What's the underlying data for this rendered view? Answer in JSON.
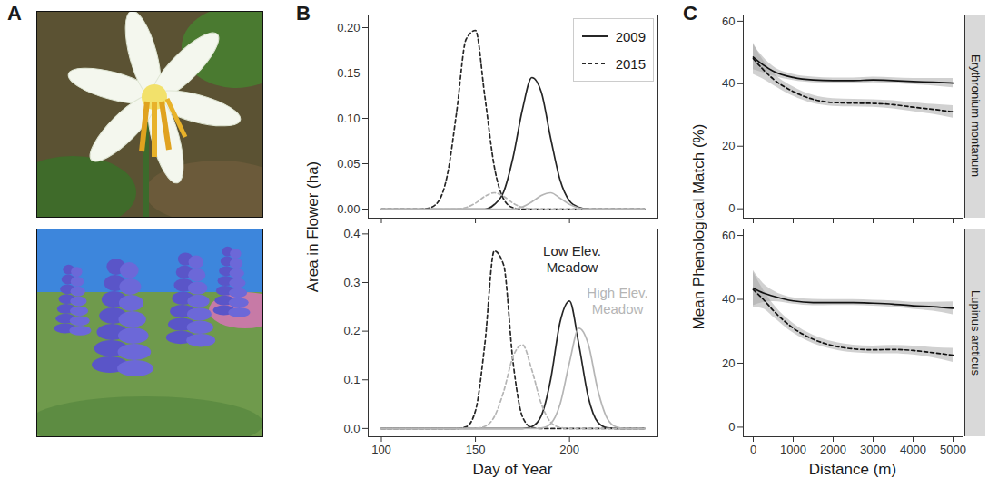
{
  "chart_data": [
    {
      "panel": "A",
      "type": "image"
    },
    {
      "panel": "B",
      "type": "line",
      "ylabel": "Area in Flower (ha)",
      "legend": "top-right",
      "tick_labels": "y",
      "xlim": [
        93,
        247
      ],
      "xticks": [
        100,
        150,
        200
      ],
      "ylim": [
        -0.01,
        0.214
      ],
      "yticks": [
        {
          "value": 0,
          "label": "0.00"
        },
        0.05,
        {
          "value": 0.1,
          "label": "0.10"
        },
        0.15,
        {
          "value": 0.2,
          "label": "0.20"
        }
      ],
      "x": [
        100,
        105,
        110,
        115,
        120,
        125,
        130,
        135,
        140,
        145,
        150,
        155,
        160,
        165,
        170,
        175,
        180,
        185,
        190,
        195,
        200,
        205,
        210,
        215,
        220,
        225,
        230,
        235,
        240
      ],
      "series": [
        {
          "name": "2009",
          "group": "Low Elev. Meadow",
          "color": "#262626",
          "line_style": "solid",
          "values": [
            0,
            0,
            0,
            0,
            0,
            0,
            0,
            0,
            0,
            0,
            0,
            0,
            0.005,
            0.019,
            0.057,
            0.11,
            0.145,
            0.129,
            0.078,
            0.032,
            0.009,
            0.002,
            0,
            0,
            0,
            0,
            0,
            0,
            0
          ]
        },
        {
          "name": "2015",
          "group": "Low Elev. Meadow",
          "color": "#262626",
          "line_style": "dashed",
          "values": [
            0,
            0,
            0,
            0,
            0,
            0.001,
            0.0075,
            0.037,
            0.107,
            0.187,
            0.197,
            0.124,
            0.047,
            0.011,
            0.0015,
            0,
            0,
            0,
            0,
            0,
            0,
            0,
            0,
            0,
            0,
            0,
            0,
            0,
            0
          ]
        },
        {
          "name": "2009",
          "group": "High Elev. Meadow",
          "color": "#b5b5b5",
          "line_style": "solid",
          "values": [
            0,
            0,
            0,
            0,
            0,
            0,
            0,
            0,
            0,
            0,
            0,
            0,
            0,
            0,
            0,
            0.0024,
            0.008,
            0.015,
            0.018,
            0.012,
            0.0053,
            0.0013,
            0,
            0,
            0,
            0,
            0,
            0,
            0
          ]
        },
        {
          "name": "2015",
          "group": "High Elev. Meadow",
          "color": "#b5b5b5",
          "line_style": "dashed",
          "values": [
            0,
            0,
            0,
            0,
            0,
            0,
            0,
            0,
            0.0003,
            0.0018,
            0.0065,
            0.014,
            0.018,
            0.014,
            0.0065,
            0.0018,
            0.0003,
            0,
            0,
            0,
            0,
            0,
            0,
            0,
            0,
            0,
            0,
            0,
            0
          ]
        }
      ]
    },
    {
      "type": "line",
      "xlabel": "Day of Year",
      "annotations": [
        "Low Elev. Meadow",
        "High Elev. Meadow"
      ],
      "xlim": [
        93,
        247
      ],
      "xticks": [
        100,
        150,
        200
      ],
      "ylim": [
        -0.017,
        0.41
      ],
      "yticks": [
        {
          "value": 0,
          "label": "0.0"
        },
        0.1,
        0.2,
        0.3,
        0.4
      ],
      "x": [
        100,
        105,
        110,
        115,
        120,
        125,
        130,
        135,
        140,
        145,
        150,
        155,
        160,
        165,
        170,
        175,
        180,
        185,
        190,
        195,
        200,
        205,
        210,
        215,
        220,
        225,
        230,
        235,
        240
      ],
      "series": [
        {
          "name": "2009",
          "group": "Low Elev. Meadow",
          "color": "#262626",
          "line_style": "solid",
          "values": [
            0,
            0,
            0,
            0,
            0,
            0,
            0,
            0,
            0,
            0,
            0,
            0,
            0,
            0,
            0,
            0,
            0.004,
            0.026,
            0.101,
            0.219,
            0.262,
            0.172,
            0.064,
            0.013,
            0.0015,
            0,
            0,
            0,
            0
          ]
        },
        {
          "name": "2015",
          "group": "Low Elev. Meadow",
          "color": "#262626",
          "line_style": "dashed",
          "values": [
            0,
            0,
            0,
            0,
            0,
            0,
            0,
            0,
            0,
            0.0033,
            0.036,
            0.174,
            0.365,
            0.336,
            0.136,
            0.024,
            0.0019,
            0,
            0,
            0,
            0,
            0,
            0,
            0,
            0,
            0,
            0,
            0,
            0
          ]
        },
        {
          "name": "2009",
          "group": "High Elev. Meadow",
          "color": "#b5b5b5",
          "line_style": "solid",
          "values": [
            0,
            0,
            0,
            0,
            0,
            0,
            0,
            0,
            0,
            0,
            0,
            0,
            0,
            0,
            0,
            0,
            0,
            0.001,
            0.01,
            0.05,
            0.136,
            0.206,
            0.173,
            0.08,
            0.021,
            0.003,
            0,
            0,
            0
          ]
        },
        {
          "name": "2015",
          "group": "High Elev. Meadow",
          "color": "#b5b5b5",
          "line_style": "dashed",
          "values": [
            0,
            0,
            0,
            0,
            0,
            0,
            0,
            0,
            0,
            0,
            0.0005,
            0.0044,
            0.024,
            0.076,
            0.148,
            0.172,
            0.12,
            0.051,
            0.013,
            0.002,
            0,
            0,
            0,
            0,
            0,
            0,
            0,
            0,
            0
          ]
        }
      ]
    },
    {
      "panel": "C",
      "type": "line",
      "ylabel": "Mean Phenological Match (%)",
      "facet": "Erythronium montanum",
      "tick_labels": "y",
      "xlim": [
        -250,
        5250
      ],
      "xticks": [
        0,
        1000,
        2000,
        3000,
        4000,
        5000
      ],
      "ylim": [
        -3,
        62
      ],
      "yticks": [
        0,
        20,
        40,
        60
      ],
      "x": [
        0,
        250,
        500,
        1000,
        1500,
        2000,
        2500,
        3000,
        3500,
        4000,
        4500,
        5000
      ],
      "series": [
        {
          "name": "2009",
          "color": "#111111",
          "line_style": "solid",
          "values": [
            48.5,
            46,
            44,
            42,
            41.2,
            41,
            41,
            41.2,
            41,
            40.7,
            40.5,
            40.2
          ],
          "lower": [
            44.5,
            43.5,
            42.5,
            41,
            40.3,
            40.2,
            40.2,
            40.3,
            40.1,
            39.7,
            39.3,
            38.7
          ],
          "upper": [
            52.5,
            48.5,
            45.5,
            43,
            42.1,
            41.8,
            41.8,
            42.1,
            41.9,
            41.7,
            41.7,
            41.7
          ]
        },
        {
          "name": "2015",
          "color": "#111111",
          "line_style": "dashed",
          "values": [
            48,
            44.5,
            41.5,
            37.5,
            35,
            34,
            33.8,
            33.7,
            33.3,
            32.5,
            31.8,
            31
          ],
          "lower": [
            43,
            41.5,
            39.5,
            36,
            33.7,
            32.8,
            32.6,
            32.5,
            32,
            31.1,
            30.2,
            29
          ],
          "upper": [
            53,
            47.5,
            43.5,
            39,
            36.3,
            35.2,
            35,
            34.9,
            34.6,
            33.9,
            33.4,
            33
          ]
        }
      ]
    },
    {
      "type": "line",
      "xlabel": "Distance (m)",
      "facet": "Lupinus arcticus",
      "xlim": [
        -250,
        5250
      ],
      "xticks": [
        0,
        1000,
        2000,
        3000,
        4000,
        5000
      ],
      "ylim": [
        -3,
        62
      ],
      "yticks": [
        0,
        20,
        40,
        60
      ],
      "x": [
        0,
        250,
        500,
        1000,
        1500,
        2000,
        2500,
        3000,
        3500,
        4000,
        4500,
        5000
      ],
      "series": [
        {
          "name": "2009",
          "color": "#111111",
          "line_style": "solid",
          "values": [
            43.5,
            42,
            41,
            39.5,
            39,
            39,
            39,
            38.8,
            38.5,
            38,
            37.7,
            37.2
          ],
          "lower": [
            38,
            39,
            39.3,
            38.5,
            38,
            38.1,
            38.1,
            37.9,
            37.5,
            36.9,
            36.3,
            35.2
          ],
          "upper": [
            49,
            45,
            42.7,
            40.5,
            40,
            39.9,
            39.9,
            39.7,
            39.5,
            39.1,
            39.1,
            39.2
          ]
        },
        {
          "name": "2015",
          "color": "#111111",
          "line_style": "dashed",
          "values": [
            43,
            40,
            36.5,
            31,
            27.5,
            25.5,
            24.5,
            24.2,
            24.3,
            24,
            23.3,
            22.5
          ],
          "lower": [
            37.5,
            37,
            34.5,
            29.5,
            26.2,
            24.3,
            23.3,
            23,
            23,
            22.6,
            21.7,
            20.3
          ],
          "upper": [
            48.5,
            43,
            38.5,
            32.5,
            28.8,
            26.7,
            25.7,
            25.4,
            25.6,
            25.4,
            24.9,
            24.7
          ]
        }
      ]
    }
  ]
}
